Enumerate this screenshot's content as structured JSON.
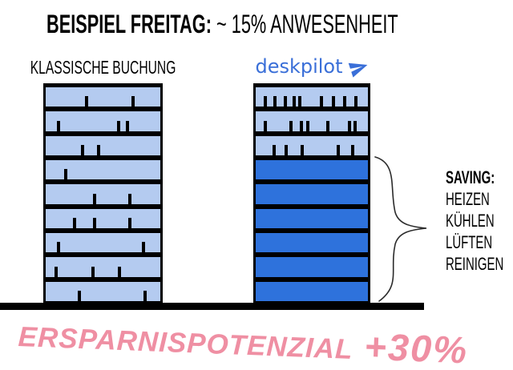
{
  "title": {
    "lead": "BEISPIEL FREITAG:",
    "detail": " ~ 15% ANWESENHEIT"
  },
  "left_building": {
    "label": "KLASSISCHE BUCHUNG",
    "floors": [
      {
        "state": "occupied",
        "occupants": [
          34,
          75
        ]
      },
      {
        "state": "occupied",
        "occupants": [
          10,
          62,
          70
        ]
      },
      {
        "state": "occupied",
        "occupants": [
          31,
          45
        ]
      },
      {
        "state": "occupied",
        "occupants": [
          16
        ]
      },
      {
        "state": "occupied",
        "occupants": [
          41,
          72
        ]
      },
      {
        "state": "occupied",
        "occupants": [
          24,
          41,
          72
        ]
      },
      {
        "state": "occupied",
        "occupants": [
          10,
          84
        ]
      },
      {
        "state": "occupied",
        "occupants": [
          8,
          40,
          63
        ]
      },
      {
        "state": "occupied",
        "occupants": [
          28,
          85
        ]
      }
    ]
  },
  "right_building": {
    "brand": "deskpilot",
    "floors": [
      {
        "state": "occupied",
        "occupants": [
          7,
          16,
          25,
          33,
          38,
          57,
          68,
          78,
          88
        ]
      },
      {
        "state": "occupied",
        "occupants": [
          7,
          30,
          39,
          45,
          63,
          82,
          87
        ]
      },
      {
        "state": "occupied",
        "occupants": [
          15,
          26,
          40,
          72,
          85
        ]
      },
      {
        "state": "empty",
        "occupants": []
      },
      {
        "state": "empty",
        "occupants": []
      },
      {
        "state": "empty",
        "occupants": []
      },
      {
        "state": "empty",
        "occupants": []
      },
      {
        "state": "empty",
        "occupants": []
      },
      {
        "state": "empty",
        "occupants": []
      }
    ]
  },
  "saving": {
    "title": "SAVING:",
    "items": [
      "HEIZEN",
      "KÜHLEN",
      "LÜFTEN",
      "REINIGEN"
    ]
  },
  "footer": {
    "text": "ERSPARNISPOTENZIAL",
    "highlight": "+30%"
  },
  "colors": {
    "floor_light": "#b4cbf0",
    "floor_dark": "#2e72dc",
    "brand": "#3a6fd8",
    "accent_pink": "#ef8fa3",
    "ink": "#000000"
  }
}
